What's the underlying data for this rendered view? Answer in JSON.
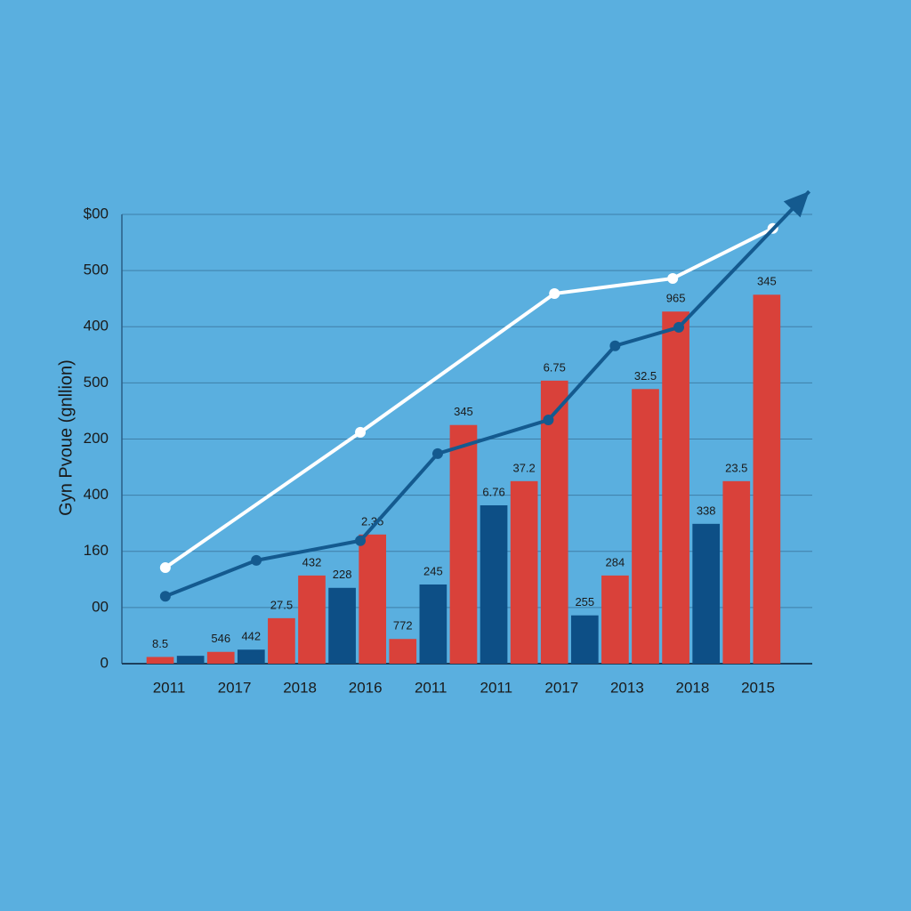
{
  "chart_data": {
    "type": "bar-line",
    "y_axis_label": "Gyn Pvoue (gnllion)",
    "x_labels": [
      "2011",
      "2017",
      "2018",
      "2016",
      "2011",
      "2011",
      "2017",
      "2013",
      "2018",
      "2015"
    ],
    "xlim": [
      0,
      22
    ],
    "ylim": [
      0,
      800
    ],
    "yticks": [
      0,
      {
        "value": 100,
        "label": "00"
      },
      {
        "value": 200,
        "label": "160"
      },
      {
        "value": 300,
        "label": "400"
      },
      {
        "value": 400,
        "label": "200"
      },
      500,
      {
        "value": 600,
        "label": "400"
      },
      {
        "value": 700,
        "label": "500"
      },
      {
        "value": 800,
        "label": "$00"
      }
    ],
    "grid": true,
    "bar_series": [
      {
        "color": "#d9413a",
        "values": [
          12,
          null,
          21,
          null,
          81,
          157,
          null,
          230,
          44,
          null,
          425,
          null,
          325,
          504,
          null,
          157,
          489,
          627,
          null,
          325,
          657
        ]
      },
      {
        "color": "#0d4f86",
        "values": [
          null,
          14,
          null,
          25,
          null,
          null,
          135,
          null,
          null,
          141,
          null,
          282,
          null,
          null,
          86,
          null,
          null,
          null,
          249,
          null,
          null
        ]
      }
    ],
    "bar_labels": [
      "8.5",
      null,
      "546",
      "442",
      "27.5",
      "432",
      "228",
      "2.35",
      "772",
      "245",
      "345",
      "6.76",
      "37.2",
      "6.75",
      "255",
      "284",
      "32.5",
      "965",
      "338",
      "23.5",
      "345"
    ],
    "line_series": [
      {
        "color": "#ffffff",
        "arrow": false,
        "x": [
          0.67,
          7.1,
          13.5,
          17.4,
          20.7
        ],
        "values": [
          171,
          412,
          659,
          686,
          775
        ]
      },
      {
        "color": "#145a8f",
        "arrow": true,
        "x": [
          0.67,
          3.67,
          7.1,
          9.65,
          13.3,
          15.5,
          17.6,
          21.9
        ],
        "values": [
          120,
          184,
          219,
          374,
          434,
          566,
          599,
          841
        ]
      }
    ]
  }
}
